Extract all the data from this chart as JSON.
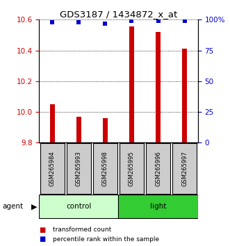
{
  "title": "GDS3187 / 1434872_x_at",
  "samples": [
    "GSM265984",
    "GSM265993",
    "GSM265998",
    "GSM265995",
    "GSM265996",
    "GSM265997"
  ],
  "bar_values": [
    10.05,
    9.97,
    9.96,
    10.555,
    10.52,
    10.41
  ],
  "percentile_values": [
    98,
    98,
    97,
    99,
    99,
    99
  ],
  "ylim_left": [
    9.8,
    10.6
  ],
  "ylim_right": [
    0,
    100
  ],
  "yticks_left": [
    9.8,
    10.0,
    10.2,
    10.4,
    10.6
  ],
  "yticks_right": [
    0,
    25,
    50,
    75,
    100
  ],
  "ytick_labels_right": [
    "0",
    "25",
    "50",
    "75",
    "100%"
  ],
  "bar_color": "#cc0000",
  "dot_color": "#0000cc",
  "bar_bottom": 9.8,
  "groups": [
    {
      "label": "control",
      "indices": [
        0,
        1,
        2
      ],
      "color": "#ccffcc"
    },
    {
      "label": "light",
      "indices": [
        3,
        4,
        5
      ],
      "color": "#33cc33"
    }
  ],
  "agent_label": "agent",
  "legend_items": [
    {
      "label": "transformed count",
      "color": "#cc0000"
    },
    {
      "label": "percentile rank within the sample",
      "color": "#0000cc"
    }
  ],
  "sample_box_color": "#cccccc",
  "ylabel_left_color": "#cc0000",
  "ylabel_right_color": "#0000cc"
}
